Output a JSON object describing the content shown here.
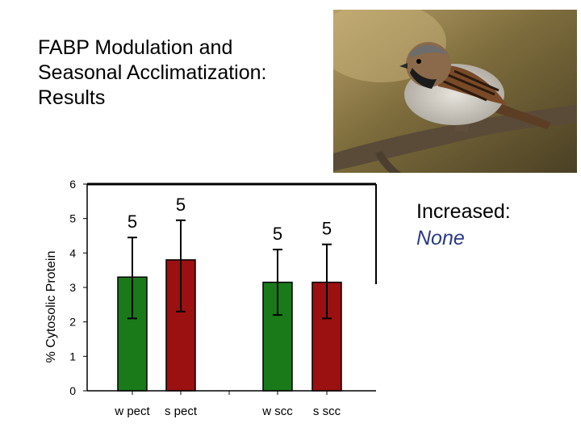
{
  "slide": {
    "title": "FABP Modulation and\nSeasonal Acclimatization:\nResults",
    "side_label": "Increased:",
    "side_value": "None"
  },
  "image": {
    "subject": "house-sparrow-photo"
  },
  "colors": {
    "winter": "#1a7a1a",
    "summer": "#9b1010",
    "axis": "#000000"
  },
  "chart_data": {
    "type": "bar",
    "title": "",
    "ylabel": "% Cytosolic Protein",
    "xlabel": "",
    "ylim": [
      0,
      6
    ],
    "yticks": [
      0,
      1,
      2,
      3,
      4,
      5,
      6
    ],
    "grid": false,
    "categories": [
      "w pect",
      "s pect",
      "w scc",
      "s scc"
    ],
    "values": [
      3.3,
      3.8,
      3.15,
      3.15
    ],
    "error_low": [
      2.1,
      2.3,
      2.2,
      2.1
    ],
    "error_high": [
      4.45,
      4.95,
      4.1,
      4.25
    ],
    "sample_sizes": [
      "5",
      "5",
      "5",
      "5"
    ],
    "bar_colors": [
      "winter",
      "summer",
      "winter",
      "summer"
    ]
  }
}
